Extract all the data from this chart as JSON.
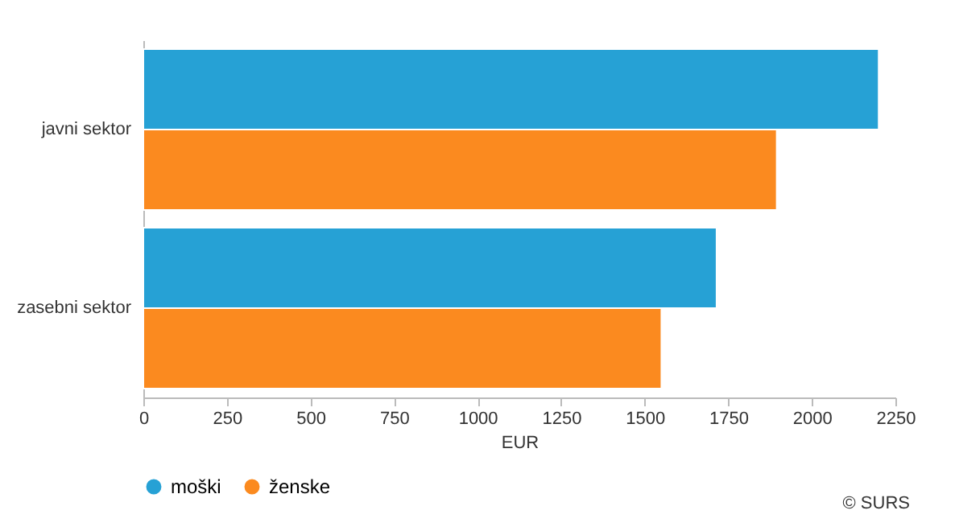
{
  "chart_data": {
    "type": "bar",
    "orientation": "horizontal",
    "xlabel": "EUR",
    "categories": [
      "javni sektor",
      "zasebni sektor"
    ],
    "series": [
      {
        "name": "moški",
        "color": "#26a1d5",
        "values": [
          2200,
          1715
        ]
      },
      {
        "name": "ženske",
        "color": "#fb8a1f",
        "values": [
          1895,
          1550
        ]
      }
    ],
    "xlim": [
      0,
      2250
    ],
    "xticks": [
      0,
      250,
      500,
      750,
      1000,
      1250,
      1500,
      1750,
      2000,
      2250
    ],
    "grid": false,
    "legend": "bottom",
    "annotations": [
      "© SURS"
    ]
  }
}
